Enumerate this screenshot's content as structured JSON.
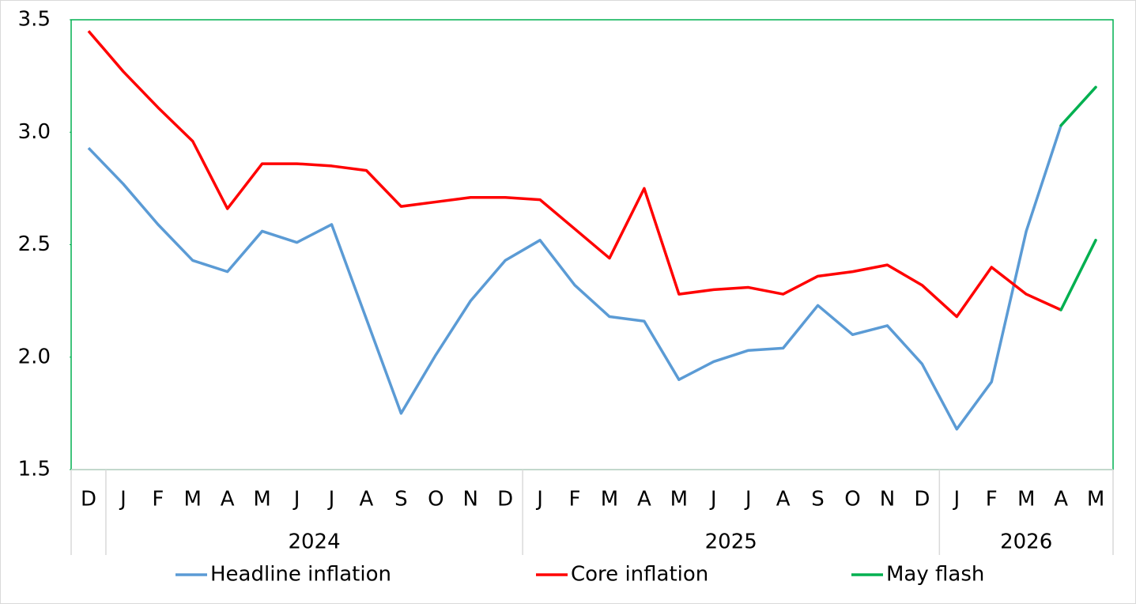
{
  "chart_data": {
    "type": "line",
    "categories": [
      "D",
      "J",
      "F",
      "M",
      "A",
      "M",
      "J",
      "J",
      "A",
      "S",
      "O",
      "N",
      "D",
      "J",
      "F",
      "M",
      "A",
      "M",
      "J",
      "J",
      "A",
      "S",
      "O",
      "N",
      "D",
      "J",
      "F",
      "M",
      "A",
      "M"
    ],
    "x_groups": [
      null,
      "2024",
      "2024",
      "2024",
      "2024",
      "2024",
      "2024",
      "2024",
      "2024",
      "2024",
      "2024",
      "2024",
      "2024",
      "2025",
      "2025",
      "2025",
      "2025",
      "2025",
      "2025",
      "2025",
      "2025",
      "2025",
      "2025",
      "2025",
      "2025",
      "2026",
      "2026",
      "2026",
      "2026",
      "2026"
    ],
    "series": [
      {
        "name": "Headline inflation",
        "color": "#5b9bd5",
        "values": [
          2.93,
          2.77,
          2.59,
          2.43,
          2.38,
          2.56,
          2.51,
          2.59,
          2.17,
          1.75,
          2.01,
          2.25,
          2.43,
          2.52,
          2.32,
          2.18,
          2.16,
          1.9,
          1.98,
          2.03,
          2.04,
          2.23,
          2.1,
          2.14,
          1.97,
          1.68,
          1.89,
          2.56,
          3.03,
          3.2
        ]
      },
      {
        "name": "Core inflation",
        "color": "#ff0000",
        "values": [
          3.45,
          3.27,
          3.11,
          2.96,
          2.66,
          2.86,
          2.86,
          2.85,
          2.83,
          2.67,
          2.69,
          2.71,
          2.71,
          2.7,
          2.57,
          2.44,
          2.75,
          2.28,
          2.3,
          2.31,
          2.28,
          2.36,
          2.38,
          2.41,
          2.32,
          2.18,
          2.4,
          2.28,
          2.21,
          2.52
        ]
      }
    ],
    "flash": {
      "name": "May flash",
      "color": "#00b050"
    },
    "ylim": [
      1.5,
      3.5
    ],
    "yticks": [
      1.5,
      {
        "value": 2,
        "label": "2.0"
      },
      2.5,
      {
        "value": 3,
        "label": "3.0"
      },
      3.5
    ],
    "grid": false,
    "legend": "bottom"
  }
}
